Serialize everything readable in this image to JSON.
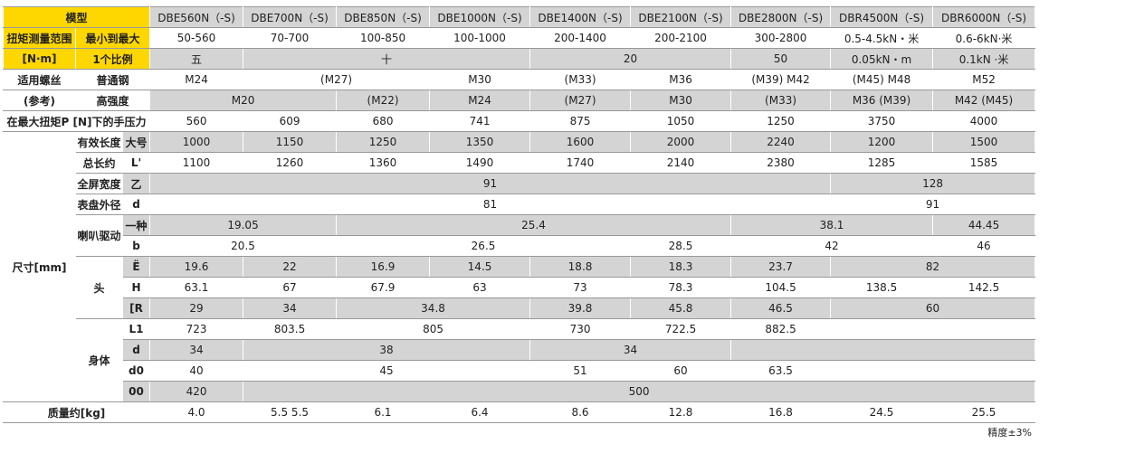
{
  "table": {
    "rows": [
      [
        "模型",
        "DBE560N（-S)",
        "DBE700N（-S)",
        "DBE850N（-S)",
        "DBE1000N（-S)",
        "DBE1400N（-S)",
        "DBE2100N（-S)",
        "DBE2800N（-S)",
        "DBR4500N（-S)",
        "DBR6000N（-S)"
      ],
      [
        "扭矩测量范围",
        "最小到最大",
        "50-560",
        "70-700",
        "100-850",
        "100-1000",
        "200-1400",
        "200-2100",
        "300-2800",
        "0.5-4.5kN・米",
        "0.6-6kN·米"
      ],
      [
        "[N·m]",
        "1个比例",
        "五",
        "十",
        "20",
        "50",
        "0.05kN・m",
        "0.1kN ·米"
      ],
      [
        "适用螺丝",
        "普通钢",
        "M24",
        "(M27)",
        "M30",
        "(M33)",
        "M36",
        "(M39) M42",
        "(M45) M48",
        "M52"
      ],
      [
        "(参考)",
        "高强度",
        "M20",
        "(M22)",
        "M24",
        "(M27)",
        "M30",
        "(M33)",
        "M36 (M39)",
        "M42 (M45)"
      ],
      [
        "在最大扭矩P [N]下的手压力",
        "560",
        "609",
        "680",
        "741",
        "875",
        "1050",
        "1250",
        "3750",
        "4000"
      ],
      [
        "尺寸[mm]",
        "有效长度",
        "大号",
        "1000",
        "1150",
        "1250",
        "1350",
        "1600",
        "2000",
        "2240",
        "1200",
        "1500"
      ],
      [
        "总长约",
        "L'",
        "1100",
        "1260",
        "1360",
        "1490",
        "1740",
        "2140",
        "2380",
        "1285",
        "1585"
      ],
      [
        "全屏宽度",
        "乙",
        "91",
        "128"
      ],
      [
        "表盘外径",
        "d",
        "81",
        "91"
      ],
      [
        "喇叭驱动",
        "一种",
        "19.05",
        "25.4",
        "38.1",
        "44.45"
      ],
      [
        "b",
        "20.5",
        "26.5",
        "28.5",
        "42",
        "46"
      ],
      [
        "头",
        "Ë",
        "19.6",
        "22",
        "16.9",
        "14.5",
        "18.8",
        "18.3",
        "23.7",
        "82"
      ],
      [
        "H",
        "63.1",
        "67",
        "67.9",
        "63",
        "73",
        "78.3",
        "104.5",
        "138.5",
        "142.5"
      ],
      [
        "[R",
        "29",
        "34",
        "34.8",
        "39.8",
        "45.8",
        "46.5",
        "60"
      ],
      [
        "身体",
        "L1",
        "723",
        "803.5",
        "805",
        "730",
        "722.5",
        "882.5"
      ],
      [
        "d",
        "34",
        "38",
        "34"
      ],
      [
        "d0",
        "40",
        "45",
        "51",
        "60",
        "63.5"
      ],
      [
        "00",
        "420",
        "500"
      ],
      [
        "质量约[kg]",
        "4.0",
        "5.5 5.5",
        "6.1",
        "6.4",
        "8.6",
        "12.8",
        "16.8",
        "24.5",
        "25.5"
      ]
    ],
    "footnote": "精度±3%"
  }
}
